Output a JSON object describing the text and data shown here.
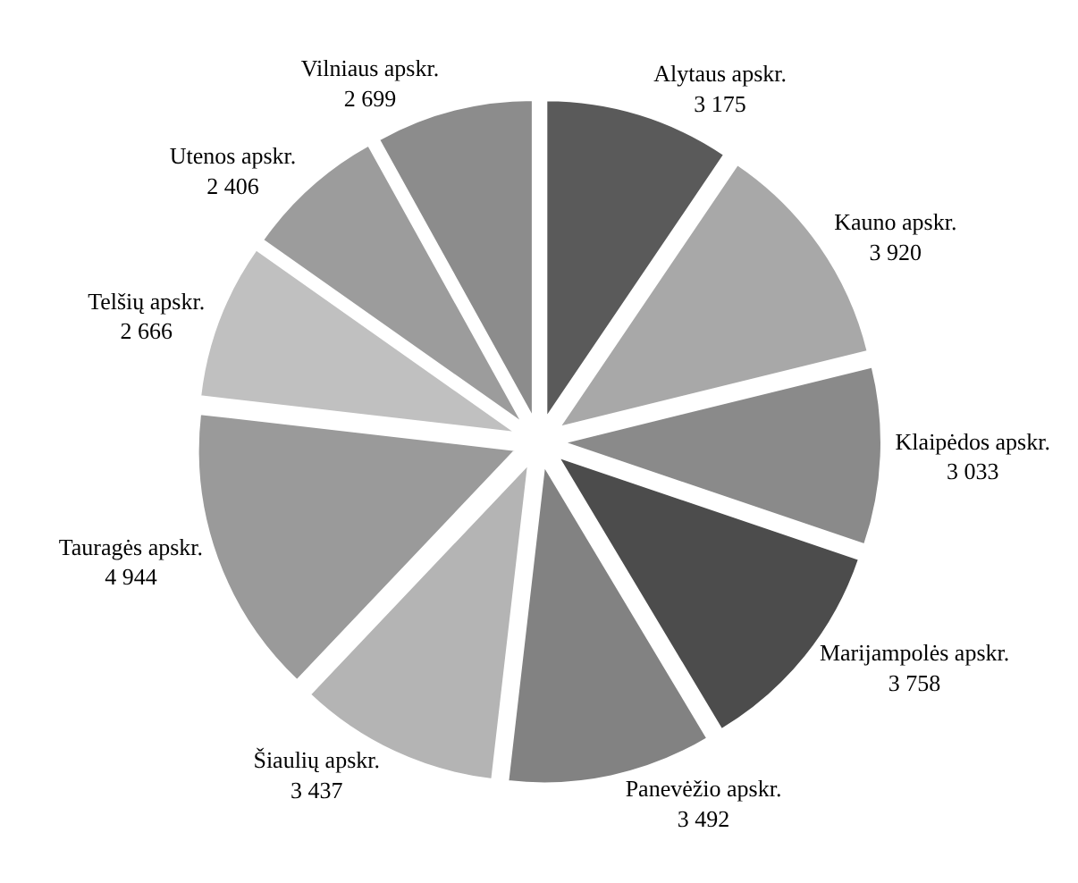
{
  "chart_data": {
    "type": "pie",
    "categories": [
      "Alytaus apskr.",
      "Kauno apskr.",
      "Klaipėdos apskr.",
      "Marijampolės apskr.",
      "Panevėžio apskr.",
      "Šiaulių apskr.",
      "Tauragės apskr.",
      "Telšių apskr.",
      "Utenos apskr.",
      "Vilniaus apskr."
    ],
    "values": [
      3175,
      3920,
      3033,
      3758,
      3492,
      3437,
      4944,
      2666,
      2406,
      2699
    ],
    "value_labels": [
      "3 175",
      "3 920",
      "3 033",
      "3 758",
      "3 492",
      "3 437",
      "4 944",
      "2 666",
      "2 406",
      "2 699"
    ],
    "colors": [
      "#5a5a5a",
      "#a8a8a8",
      "#8a8a8a",
      "#4c4c4c",
      "#828282",
      "#b4b4b4",
      "#9a9a9a",
      "#c0c0c0",
      "#9c9c9c",
      "#8c8c8c"
    ],
    "legend": false
  }
}
